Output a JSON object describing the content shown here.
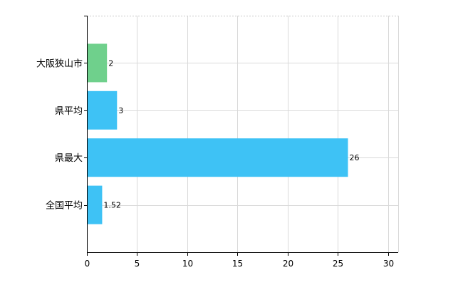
{
  "chart_data": {
    "type": "bar",
    "orientation": "horizontal",
    "categories": [
      "大阪狭山市",
      "県平均",
      "県最大",
      "全国平均"
    ],
    "values": [
      2,
      3,
      26,
      1.52
    ],
    "value_labels": [
      "2",
      "3",
      "26",
      "1.52"
    ],
    "bar_colors": [
      "#6fd08c",
      "#3ec2f5",
      "#3ec2f5",
      "#3ec2f5"
    ],
    "xlim": [
      0,
      31
    ],
    "xticks": [
      0,
      5,
      10,
      15,
      20,
      25,
      30
    ],
    "xtick_labels": [
      "0",
      "5",
      "10",
      "15",
      "20",
      "25",
      "30"
    ],
    "grid": true,
    "title": "",
    "xlabel": "",
    "ylabel": ""
  }
}
